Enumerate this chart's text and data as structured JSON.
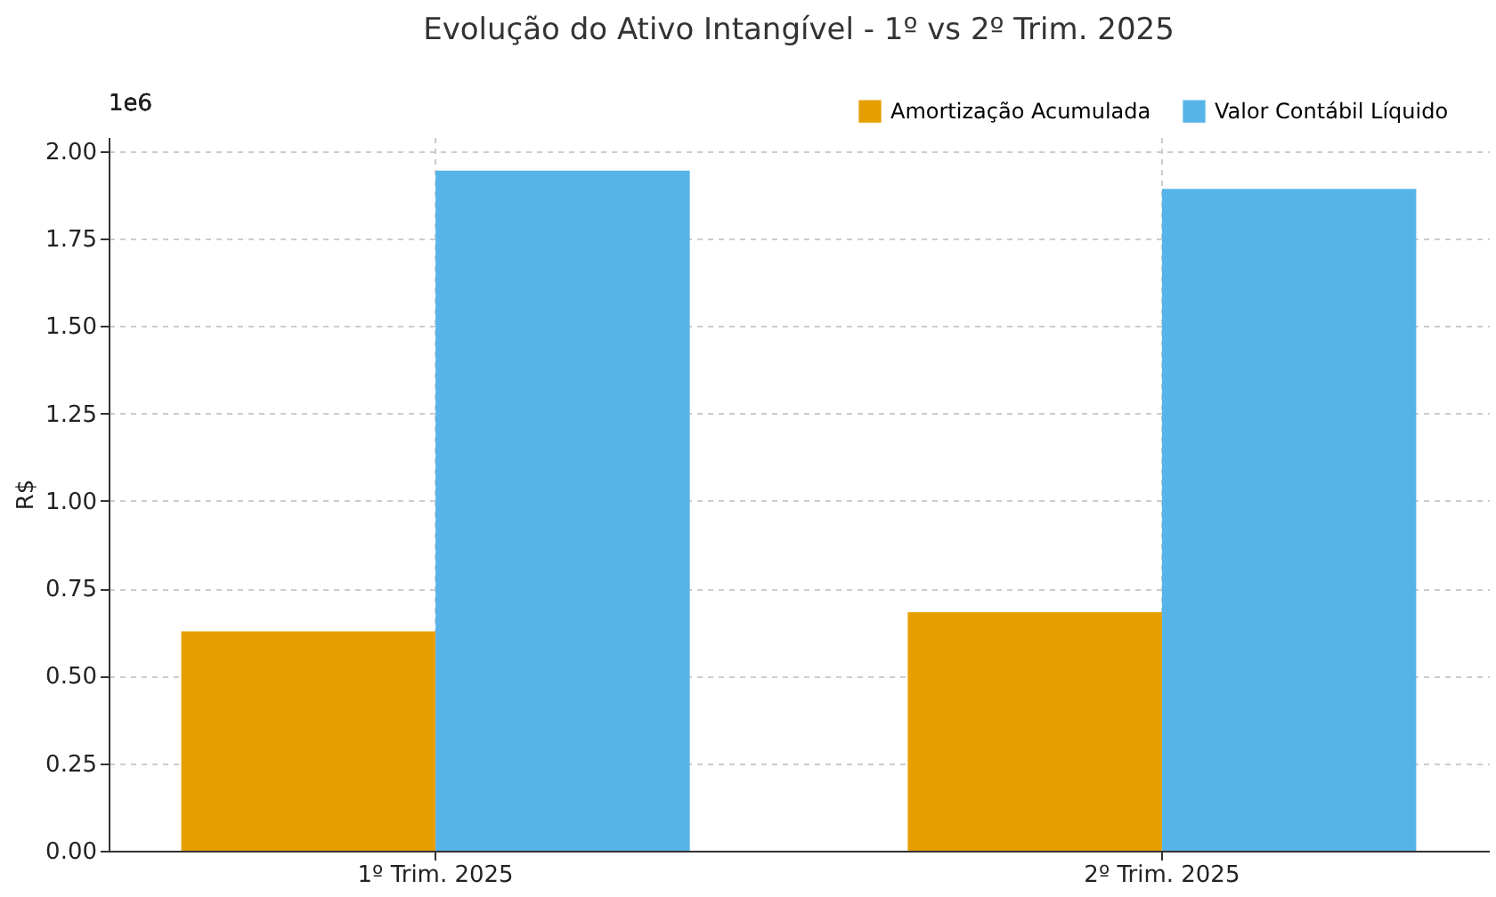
{
  "chart_data": {
    "type": "bar",
    "title": "Evolução do Ativo Intangível - 1º vs 2º Trim. 2025",
    "ylabel": "R$",
    "annotations": [
      "1e6"
    ],
    "categories": [
      "1º Trim. 2025",
      "2º Trim. 2025"
    ],
    "series": [
      {
        "name": "Amortização Acumulada",
        "color": "#e69f00",
        "values": [
          0.627,
          0.682
        ]
      },
      {
        "name": "Valor Contábil Líquido",
        "color": "#56b4e9",
        "values": [
          1.944,
          1.892
        ]
      }
    ],
    "ylim": [
      0,
      2.04
    ],
    "yticks": [
      {
        "value": 0,
        "label": "0.00"
      },
      {
        "value": 0.25,
        "label": "0.25"
      },
      {
        "value": 0.5,
        "label": "0.50"
      },
      {
        "value": 0.75,
        "label": "0.75"
      },
      {
        "value": 1,
        "label": "1.00"
      },
      {
        "value": 1.25,
        "label": "1.25"
      },
      {
        "value": 1.5,
        "label": "1.50"
      },
      {
        "value": 1.75,
        "label": "1.75"
      },
      {
        "value": 2,
        "label": "2.00"
      }
    ],
    "grid": true,
    "legend": "top right"
  }
}
